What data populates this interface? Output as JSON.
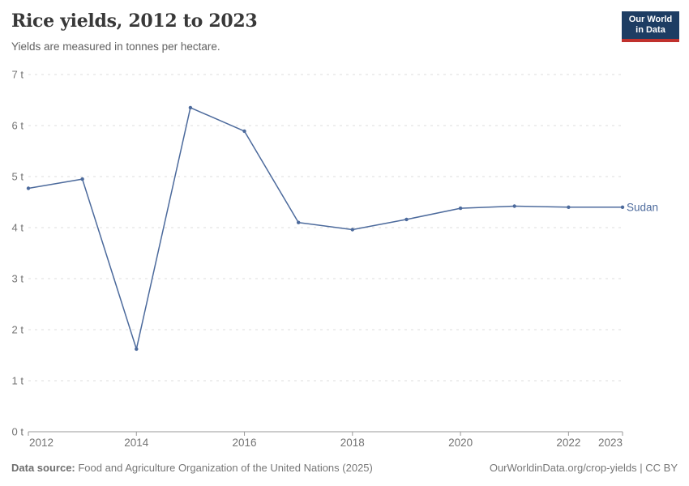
{
  "chart_data": {
    "type": "line",
    "title": "Rice yields, 2012 to 2023",
    "subtitle": "Yields are measured in tonnes per hectare.",
    "x": [
      2012,
      2013,
      2014,
      2015,
      2016,
      2017,
      2018,
      2019,
      2020,
      2021,
      2022,
      2023
    ],
    "series": [
      {
        "name": "Sudan",
        "color": "#4c6a9c",
        "values": [
          4.77,
          4.95,
          1.62,
          6.35,
          5.89,
          4.1,
          3.96,
          4.16,
          4.38,
          4.42,
          4.4,
          4.4
        ]
      }
    ],
    "unit": "t",
    "ylim": [
      0,
      7
    ],
    "yticks": [
      0,
      1,
      2,
      3,
      4,
      5,
      6,
      7
    ],
    "xticks": [
      2012,
      2014,
      2016,
      2018,
      2020,
      2022,
      2023
    ],
    "grid": "horizontal-dashed",
    "legend": "entity-label-right-of-line",
    "style": {
      "grid_color": "#dddddd",
      "axis_color": "#999999",
      "tick_label_color": "#737373"
    }
  },
  "logo": {
    "line1": "Our World",
    "line2": "in Data",
    "bg_color": "#1d3d63",
    "underline_color": "#c0312d",
    "text_color": "#ffffff"
  },
  "footer": {
    "source_label": "Data source:",
    "source_text": " Food and Agriculture Organization of the United Nations (2025)",
    "credit": "OurWorldinData.org/crop-yields | CC BY"
  }
}
